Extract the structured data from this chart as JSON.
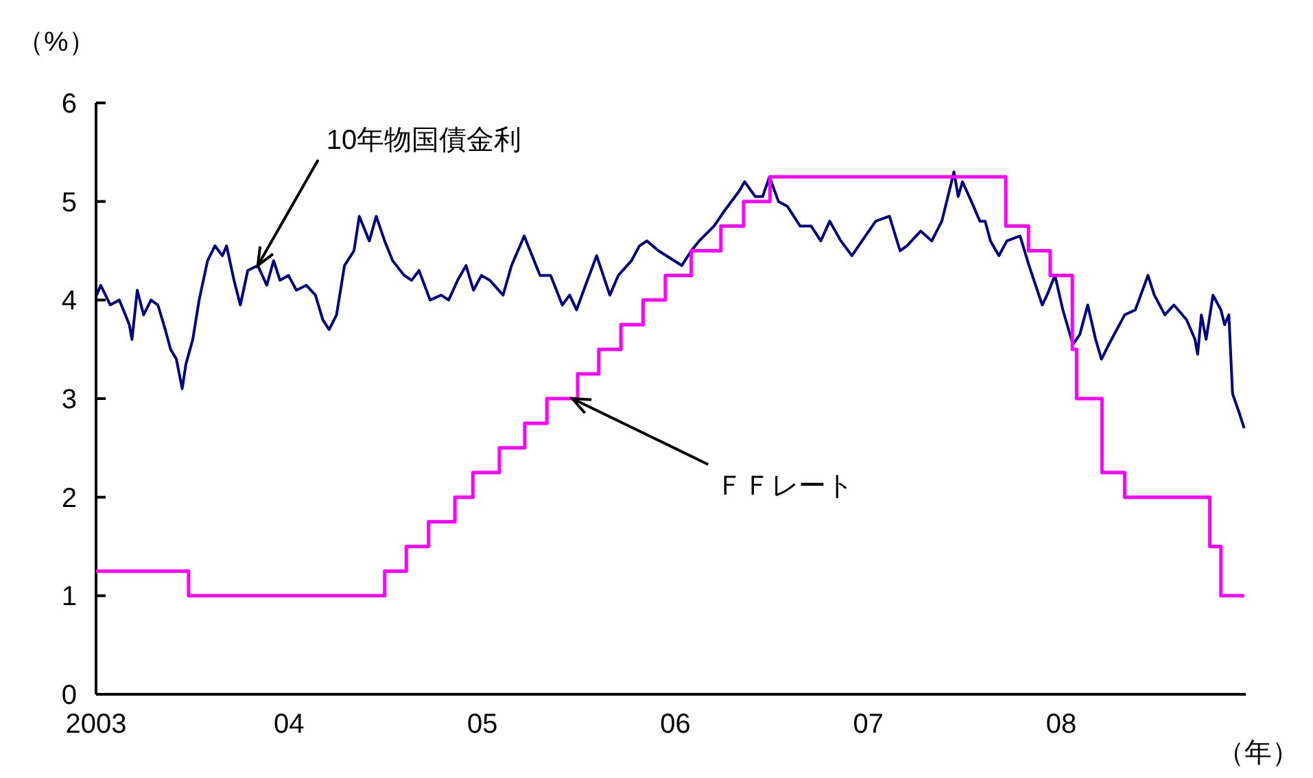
{
  "chart_data": {
    "type": "line",
    "ylabel": "（%）",
    "xlabel": "（年）",
    "xlim": [
      "2003-01-01",
      "2008-12-15"
    ],
    "xticks": [
      {
        "value": "2003-01-01",
        "label": "2003"
      },
      {
        "value": "2004-01-01",
        "label": "04"
      },
      {
        "value": "2005-01-01",
        "label": "05"
      },
      {
        "value": "2006-01-01",
        "label": "06"
      },
      {
        "value": "2007-01-01",
        "label": "07"
      },
      {
        "value": "2008-01-01",
        "label": "08"
      }
    ],
    "ylim": [
      0,
      6
    ],
    "yticks": [
      0,
      1,
      2,
      3,
      4,
      5,
      6
    ],
    "grid": false,
    "marker": "none",
    "line_style": "solid",
    "series": [
      {
        "color": "#000080",
        "x": [
          "2003-01-02",
          "2003-01-10",
          "2003-01-28",
          "2003-02-14",
          "2003-03-05",
          "2003-03-10",
          "2003-03-20",
          "2003-04-01",
          "2003-04-15",
          "2003-04-28",
          "2003-05-12",
          "2003-05-22",
          "2003-06-02",
          "2003-06-13",
          "2003-06-20",
          "2003-07-03",
          "2003-07-15",
          "2003-07-31",
          "2003-08-14",
          "2003-08-28",
          "2003-09-05",
          "2003-09-19",
          "2003-10-01",
          "2003-10-15",
          "2003-11-03",
          "2003-11-20",
          "2003-12-03",
          "2003-12-15",
          "2003-12-31",
          "2004-01-15",
          "2004-02-03",
          "2004-02-20",
          "2004-03-05",
          "2004-03-17",
          "2004-03-31",
          "2004-04-15",
          "2004-05-03",
          "2004-05-13",
          "2004-06-01",
          "2004-06-14",
          "2004-06-30",
          "2004-07-15",
          "2004-08-06",
          "2004-08-20",
          "2004-09-03",
          "2004-09-24",
          "2004-10-15",
          "2004-10-29",
          "2004-11-15",
          "2004-12-01",
          "2004-12-15",
          "2004-12-30",
          "2005-01-15",
          "2005-02-09",
          "2005-02-25",
          "2005-03-21",
          "2005-04-05",
          "2005-04-20",
          "2005-05-10",
          "2005-06-01",
          "2005-06-15",
          "2005-06-28",
          "2005-07-15",
          "2005-08-05",
          "2005-08-30",
          "2005-09-15",
          "2005-10-10",
          "2005-10-25",
          "2005-11-08",
          "2005-11-30",
          "2005-12-15",
          "2006-01-13",
          "2006-01-31",
          "2006-02-15",
          "2006-03-15",
          "2006-04-03",
          "2006-05-01",
          "2006-05-12",
          "2006-06-01",
          "2006-06-15",
          "2006-06-28",
          "2006-07-15",
          "2006-08-01",
          "2006-08-25",
          "2006-09-15",
          "2006-10-03",
          "2006-10-20",
          "2006-11-10",
          "2006-12-01",
          "2006-12-20",
          "2007-01-15",
          "2007-02-10",
          "2007-03-02",
          "2007-03-15",
          "2007-04-10",
          "2007-05-01",
          "2007-05-20",
          "2007-06-12",
          "2007-06-20",
          "2007-06-28",
          "2007-07-15",
          "2007-07-31",
          "2007-08-10",
          "2007-08-20",
          "2007-09-05",
          "2007-09-20",
          "2007-10-15",
          "2007-11-01",
          "2007-11-26",
          "2007-12-05",
          "2007-12-20",
          "2008-01-04",
          "2008-01-23",
          "2008-02-05",
          "2008-02-20",
          "2008-03-06",
          "2008-03-17",
          "2008-03-31",
          "2008-04-15",
          "2008-04-30",
          "2008-05-20",
          "2008-06-13",
          "2008-06-25",
          "2008-07-15",
          "2008-08-01",
          "2008-08-25",
          "2008-09-10",
          "2008-09-15",
          "2008-09-22",
          "2008-10-01",
          "2008-10-14",
          "2008-10-29",
          "2008-11-05",
          "2008-11-13",
          "2008-11-20",
          "2008-12-03",
          "2008-12-12"
        ],
        "values": [
          4.05,
          4.15,
          3.95,
          4.0,
          3.75,
          3.6,
          4.1,
          3.85,
          4.0,
          3.95,
          3.7,
          3.5,
          3.4,
          3.1,
          3.35,
          3.6,
          4.0,
          4.4,
          4.55,
          4.45,
          4.55,
          4.2,
          3.95,
          4.3,
          4.35,
          4.15,
          4.4,
          4.2,
          4.25,
          4.1,
          4.15,
          4.05,
          3.8,
          3.7,
          3.85,
          4.35,
          4.5,
          4.85,
          4.6,
          4.85,
          4.6,
          4.4,
          4.25,
          4.2,
          4.3,
          4.0,
          4.05,
          4.0,
          4.2,
          4.35,
          4.1,
          4.25,
          4.2,
          4.05,
          4.35,
          4.65,
          4.45,
          4.25,
          4.25,
          3.95,
          4.05,
          3.9,
          4.15,
          4.45,
          4.05,
          4.25,
          4.4,
          4.55,
          4.6,
          4.5,
          4.45,
          4.35,
          4.5,
          4.6,
          4.75,
          4.9,
          5.1,
          5.2,
          5.05,
          5.05,
          5.25,
          5.0,
          4.95,
          4.75,
          4.75,
          4.6,
          4.8,
          4.6,
          4.45,
          4.6,
          4.8,
          4.85,
          4.5,
          4.55,
          4.7,
          4.6,
          4.8,
          5.3,
          5.05,
          5.2,
          5.0,
          4.8,
          4.8,
          4.6,
          4.45,
          4.6,
          4.65,
          4.35,
          3.95,
          4.05,
          4.25,
          3.9,
          3.55,
          3.65,
          3.95,
          3.6,
          3.4,
          3.55,
          3.7,
          3.85,
          3.9,
          4.25,
          4.05,
          3.85,
          3.95,
          3.8,
          3.6,
          3.45,
          3.85,
          3.6,
          4.05,
          3.9,
          3.75,
          3.85,
          3.05,
          2.85,
          2.7
        ]
      },
      {
        "type": "step",
        "color": "#ff00ff",
        "x": [
          "2003-01-01",
          "2003-06-25",
          "2004-06-30",
          "2004-08-10",
          "2004-09-21",
          "2004-11-10",
          "2004-12-14",
          "2005-02-02",
          "2005-03-22",
          "2005-05-03",
          "2005-06-30",
          "2005-08-09",
          "2005-09-20",
          "2005-11-01",
          "2005-12-13",
          "2006-01-31",
          "2006-03-28",
          "2006-05-10",
          "2006-06-29",
          "2007-09-18",
          "2007-10-31",
          "2007-12-11",
          "2008-01-22",
          "2008-01-30",
          "2008-03-18",
          "2008-04-30",
          "2008-10-08",
          "2008-10-29",
          "2008-12-12"
        ],
        "values": [
          1.25,
          1.0,
          1.25,
          1.5,
          1.75,
          2.0,
          2.25,
          2.5,
          2.75,
          3.0,
          3.25,
          3.5,
          3.75,
          4.0,
          4.25,
          4.5,
          4.75,
          5.0,
          5.25,
          4.75,
          4.5,
          4.25,
          3.5,
          3.0,
          2.25,
          2.0,
          1.5,
          1.0,
          1.0
        ]
      }
    ],
    "annotations": [
      {
        "text": "10年物国債金利",
        "x": "2003-11-03",
        "y": 4.35
      },
      {
        "text": "ＦＦレート",
        "x": "2005-06-20",
        "y": 3.0
      }
    ]
  }
}
